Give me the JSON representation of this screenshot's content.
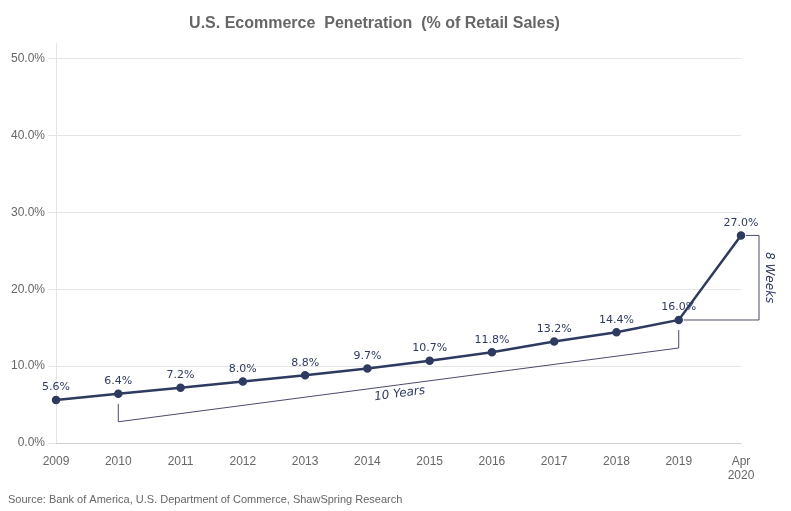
{
  "chart_data": {
    "type": "line",
    "title": "U.S. Ecommerce  Penetration  (% of Retail Sales)",
    "categories": [
      "2009",
      "2010",
      "2011",
      "2012",
      "2013",
      "2014",
      "2015",
      "2016",
      "2017",
      "2018",
      "2019",
      "Apr\n2020"
    ],
    "values": [
      5.6,
      6.4,
      7.2,
      8.0,
      8.8,
      9.7,
      10.7,
      11.8,
      13.2,
      14.4,
      16.0,
      27.0
    ],
    "value_labels": [
      "5.6%",
      "6.4%",
      "7.2%",
      "8.0%",
      "8.8%",
      "9.7%",
      "10.7%",
      "11.8%",
      "13.2%",
      "14.4%",
      "16.0%",
      "27.0%"
    ],
    "data_labels": true,
    "color": "#2e3a5f",
    "ylim": [
      0,
      52
    ],
    "yticks": [
      {
        "value": 0,
        "label": "0.0%"
      },
      {
        "value": 10,
        "label": "10.0%"
      },
      {
        "value": 20,
        "label": "20.0%"
      },
      {
        "value": 30,
        "label": "30.0%"
      },
      {
        "value": 40,
        "label": "40.0%"
      },
      {
        "value": 50,
        "label": "50.0%"
      }
    ],
    "grid": true,
    "annotations": [
      {
        "text": "10 Years",
        "from": "2010",
        "to": "2019"
      },
      {
        "text": "8 Weeks",
        "from": "2019",
        "to": "Apr\n2020"
      }
    ],
    "source": "Source: Bank of America, U.S. Department of Commerce, ShawSpring Research"
  }
}
